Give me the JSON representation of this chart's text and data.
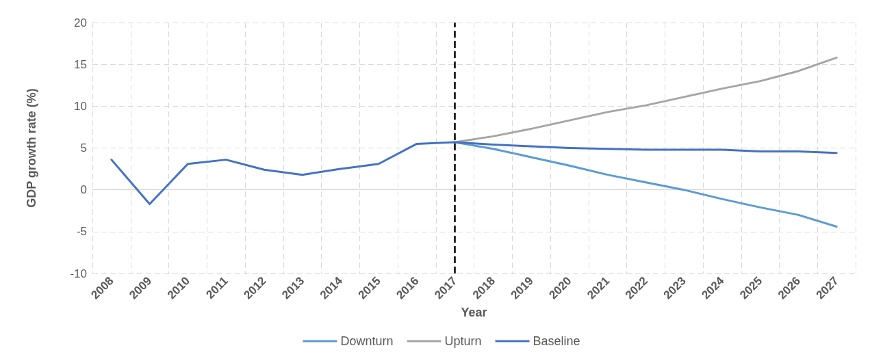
{
  "chart_data": {
    "type": "line",
    "xlabel": "Year",
    "ylabel": "GDP growth rate (%)",
    "categories": [
      "2008",
      "2009",
      "2010",
      "2011",
      "2012",
      "2013",
      "2014",
      "2015",
      "2016",
      "2017",
      "2018",
      "2019",
      "2020",
      "2021",
      "2022",
      "2023",
      "2024",
      "2025",
      "2026",
      "2027"
    ],
    "series": [
      {
        "name": "Downturn",
        "color": "#5b9bd5",
        "values": [
          null,
          null,
          null,
          null,
          null,
          null,
          null,
          null,
          null,
          5.7,
          4.9,
          3.9,
          2.9,
          1.8,
          0.9,
          0,
          -1.1,
          -2.1,
          -3.0,
          -4.4
        ]
      },
      {
        "name": "Upturn",
        "color": "#a5a5a5",
        "values": [
          null,
          null,
          null,
          null,
          null,
          null,
          null,
          null,
          null,
          5.7,
          6.4,
          7.3,
          8.3,
          9.3,
          10.1,
          11.1,
          12.1,
          13.0,
          14.2,
          15.8
        ]
      },
      {
        "name": "Baseline",
        "color": "#4472c4",
        "values": [
          3.6,
          -1.7,
          3.1,
          3.6,
          2.4,
          1.8,
          2.5,
          3.1,
          5.5,
          5.7,
          5.4,
          5.2,
          5.0,
          4.9,
          4.8,
          4.8,
          4.8,
          4.6,
          4.6,
          4.4
        ]
      }
    ],
    "ylim": [
      -10,
      20
    ],
    "yticks": [
      -10,
      -5,
      0,
      5,
      10,
      15,
      20
    ],
    "ref_lines": [
      {
        "axis": "x",
        "value": "2017",
        "color": "#000000",
        "line_style": "dashed"
      }
    ],
    "grid": true,
    "legend": "bottom",
    "marker": "none",
    "line_style": "solid"
  }
}
